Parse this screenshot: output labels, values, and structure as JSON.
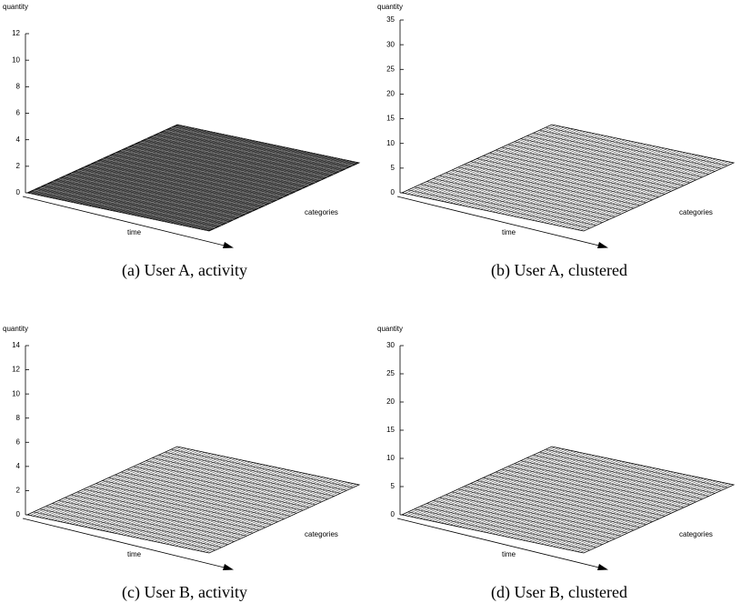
{
  "chart_data": [
    {
      "type": "surface3d",
      "caption": "(a) User A, activity",
      "zlabel": "quantity",
      "xlabel": "time",
      "ylabel": "categories",
      "zlim": [
        0,
        12
      ],
      "zticks": [
        0,
        2,
        4,
        6,
        8,
        10,
        12
      ],
      "color": "#333333"
    },
    {
      "type": "surface3d",
      "caption": "(b) User A, clustered",
      "zlabel": "quantity",
      "xlabel": "time",
      "ylabel": "categories",
      "zlim": [
        0,
        35
      ],
      "zticks": [
        0,
        5,
        10,
        15,
        20,
        25,
        30,
        35
      ],
      "color": "#ffffff"
    },
    {
      "type": "surface3d",
      "caption": "(c) User B, activity",
      "zlabel": "quantity",
      "xlabel": "time",
      "ylabel": "categories",
      "zlim": [
        0,
        14
      ],
      "zticks": [
        0,
        2,
        4,
        6,
        8,
        10,
        12,
        14
      ],
      "color": "#ffffff"
    },
    {
      "type": "surface3d",
      "caption": "(d) User B, clustered",
      "zlabel": "quantity",
      "xlabel": "time",
      "ylabel": "categories",
      "zlim": [
        0,
        30
      ],
      "zticks": [
        0,
        5,
        10,
        15,
        20,
        25,
        30
      ],
      "color": "#ffffff"
    }
  ]
}
